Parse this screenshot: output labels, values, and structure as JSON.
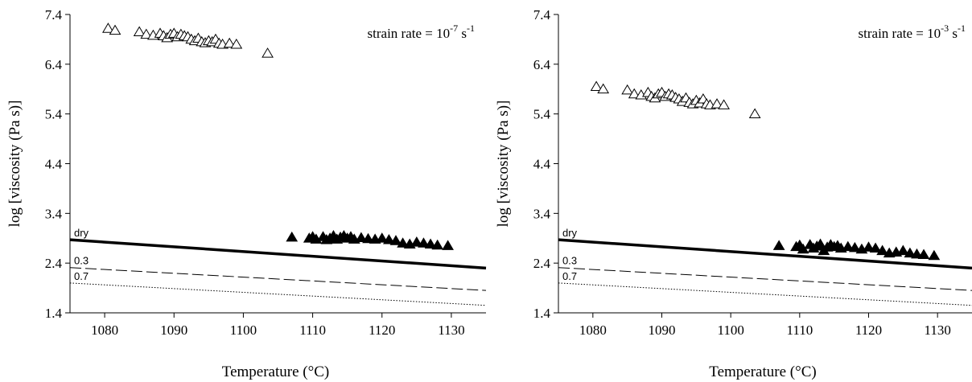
{
  "chart_data": [
    {
      "type": "scatter",
      "xlabel": "Temperature (°C)",
      "ylabel": "log [viscosity (Pa s)]",
      "xlim": [
        1075,
        1135
      ],
      "ylim": [
        1.4,
        7.4
      ],
      "xticks": [
        1080,
        1090,
        1100,
        1110,
        1120,
        1130
      ],
      "yticks": [
        "1.4",
        "2.4",
        "3.4",
        "4.4",
        "5.4",
        "6.4",
        "7.4"
      ],
      "annotation": {
        "prefix": "strain rate = 10",
        "exponent": "-7",
        "unit": " s",
        "unit_exponent": "-1"
      },
      "grid": false,
      "series": [
        {
          "marker": "triangle-open",
          "points": [
            [
              1080.5,
              7.12
            ],
            [
              1081.5,
              7.08
            ],
            [
              1085,
              7.05
            ],
            [
              1086,
              7.0
            ],
            [
              1087,
              6.98
            ],
            [
              1088,
              7.02
            ],
            [
              1088.5,
              6.97
            ],
            [
              1089,
              6.93
            ],
            [
              1089.5,
              7.0
            ],
            [
              1090,
              7.02
            ],
            [
              1090.5,
              6.95
            ],
            [
              1091,
              7.0
            ],
            [
              1091.5,
              6.97
            ],
            [
              1092,
              6.95
            ],
            [
              1092.5,
              6.9
            ],
            [
              1093,
              6.87
            ],
            [
              1093.5,
              6.92
            ],
            [
              1094,
              6.85
            ],
            [
              1094.5,
              6.83
            ],
            [
              1095,
              6.87
            ],
            [
              1095.5,
              6.85
            ],
            [
              1096,
              6.9
            ],
            [
              1096.5,
              6.82
            ],
            [
              1097,
              6.8
            ],
            [
              1098,
              6.82
            ],
            [
              1099,
              6.8
            ],
            [
              1103.5,
              6.62
            ]
          ]
        },
        {
          "marker": "triangle-filled",
          "points": [
            [
              1107,
              2.92
            ],
            [
              1109.5,
              2.9
            ],
            [
              1110,
              2.93
            ],
            [
              1110.5,
              2.88
            ],
            [
              1111.5,
              2.93
            ],
            [
              1112,
              2.87
            ],
            [
              1112.5,
              2.9
            ],
            [
              1113,
              2.95
            ],
            [
              1113.5,
              2.88
            ],
            [
              1114,
              2.92
            ],
            [
              1114.5,
              2.95
            ],
            [
              1115,
              2.9
            ],
            [
              1115.5,
              2.93
            ],
            [
              1116,
              2.88
            ],
            [
              1117,
              2.91
            ],
            [
              1118,
              2.89
            ],
            [
              1119,
              2.88
            ],
            [
              1120,
              2.9
            ],
            [
              1121,
              2.87
            ],
            [
              1122,
              2.85
            ],
            [
              1123,
              2.8
            ],
            [
              1124,
              2.78
            ],
            [
              1125,
              2.82
            ],
            [
              1126,
              2.8
            ],
            [
              1127,
              2.78
            ],
            [
              1128,
              2.76
            ],
            [
              1129.5,
              2.75
            ]
          ]
        }
      ],
      "lines": [
        {
          "label": "dry",
          "style": "solid-thick",
          "y_start": 2.87,
          "y_end": 2.3
        },
        {
          "label": "0.3",
          "style": "dashed",
          "y_start": 2.31,
          "y_end": 1.85
        },
        {
          "label": "0.7",
          "style": "dotted",
          "y_start": 2.0,
          "y_end": 1.55
        }
      ]
    },
    {
      "type": "scatter",
      "xlabel": "Temperature (°C)",
      "ylabel": "log [viscosity (Pa s)]",
      "xlim": [
        1075,
        1135
      ],
      "ylim": [
        1.4,
        7.4
      ],
      "xticks": [
        1080,
        1090,
        1100,
        1110,
        1120,
        1130
      ],
      "yticks": [
        "1.4",
        "2.4",
        "3.4",
        "4.4",
        "5.4",
        "6.4",
        "7.4"
      ],
      "annotation": {
        "prefix": "strain rate = 10",
        "exponent": "-3",
        "unit": " s",
        "unit_exponent": "-1"
      },
      "grid": false,
      "series": [
        {
          "marker": "triangle-open",
          "points": [
            [
              1080.5,
              5.95
            ],
            [
              1081.5,
              5.9
            ],
            [
              1085,
              5.88
            ],
            [
              1086,
              5.8
            ],
            [
              1087,
              5.78
            ],
            [
              1088,
              5.83
            ],
            [
              1088.5,
              5.75
            ],
            [
              1089,
              5.72
            ],
            [
              1089.5,
              5.8
            ],
            [
              1090,
              5.83
            ],
            [
              1090.5,
              5.75
            ],
            [
              1091,
              5.8
            ],
            [
              1091.5,
              5.78
            ],
            [
              1092,
              5.73
            ],
            [
              1092.5,
              5.7
            ],
            [
              1093,
              5.65
            ],
            [
              1093.5,
              5.72
            ],
            [
              1094,
              5.63
            ],
            [
              1094.5,
              5.6
            ],
            [
              1095,
              5.67
            ],
            [
              1095.5,
              5.62
            ],
            [
              1096,
              5.7
            ],
            [
              1096.5,
              5.6
            ],
            [
              1097,
              5.58
            ],
            [
              1098,
              5.6
            ],
            [
              1099,
              5.58
            ],
            [
              1103.5,
              5.4
            ]
          ]
        },
        {
          "marker": "triangle-filled",
          "points": [
            [
              1107,
              2.75
            ],
            [
              1109.5,
              2.73
            ],
            [
              1110,
              2.76
            ],
            [
              1110.5,
              2.68
            ],
            [
              1111.5,
              2.77
            ],
            [
              1112,
              2.7
            ],
            [
              1112.5,
              2.74
            ],
            [
              1113,
              2.78
            ],
            [
              1113.5,
              2.65
            ],
            [
              1114,
              2.72
            ],
            [
              1114.5,
              2.77
            ],
            [
              1115,
              2.73
            ],
            [
              1115.5,
              2.75
            ],
            [
              1116,
              2.7
            ],
            [
              1117,
              2.73
            ],
            [
              1118,
              2.71
            ],
            [
              1119,
              2.68
            ],
            [
              1120,
              2.72
            ],
            [
              1121,
              2.7
            ],
            [
              1122,
              2.65
            ],
            [
              1123,
              2.6
            ],
            [
              1124,
              2.62
            ],
            [
              1125,
              2.65
            ],
            [
              1126,
              2.6
            ],
            [
              1127,
              2.58
            ],
            [
              1128,
              2.57
            ],
            [
              1129.5,
              2.55
            ]
          ]
        }
      ],
      "lines": [
        {
          "label": "dry",
          "style": "solid-thick",
          "y_start": 2.87,
          "y_end": 2.3
        },
        {
          "label": "0.3",
          "style": "dashed",
          "y_start": 2.31,
          "y_end": 1.85
        },
        {
          "label": "0.7",
          "style": "dotted",
          "y_start": 2.0,
          "y_end": 1.55
        }
      ]
    }
  ]
}
